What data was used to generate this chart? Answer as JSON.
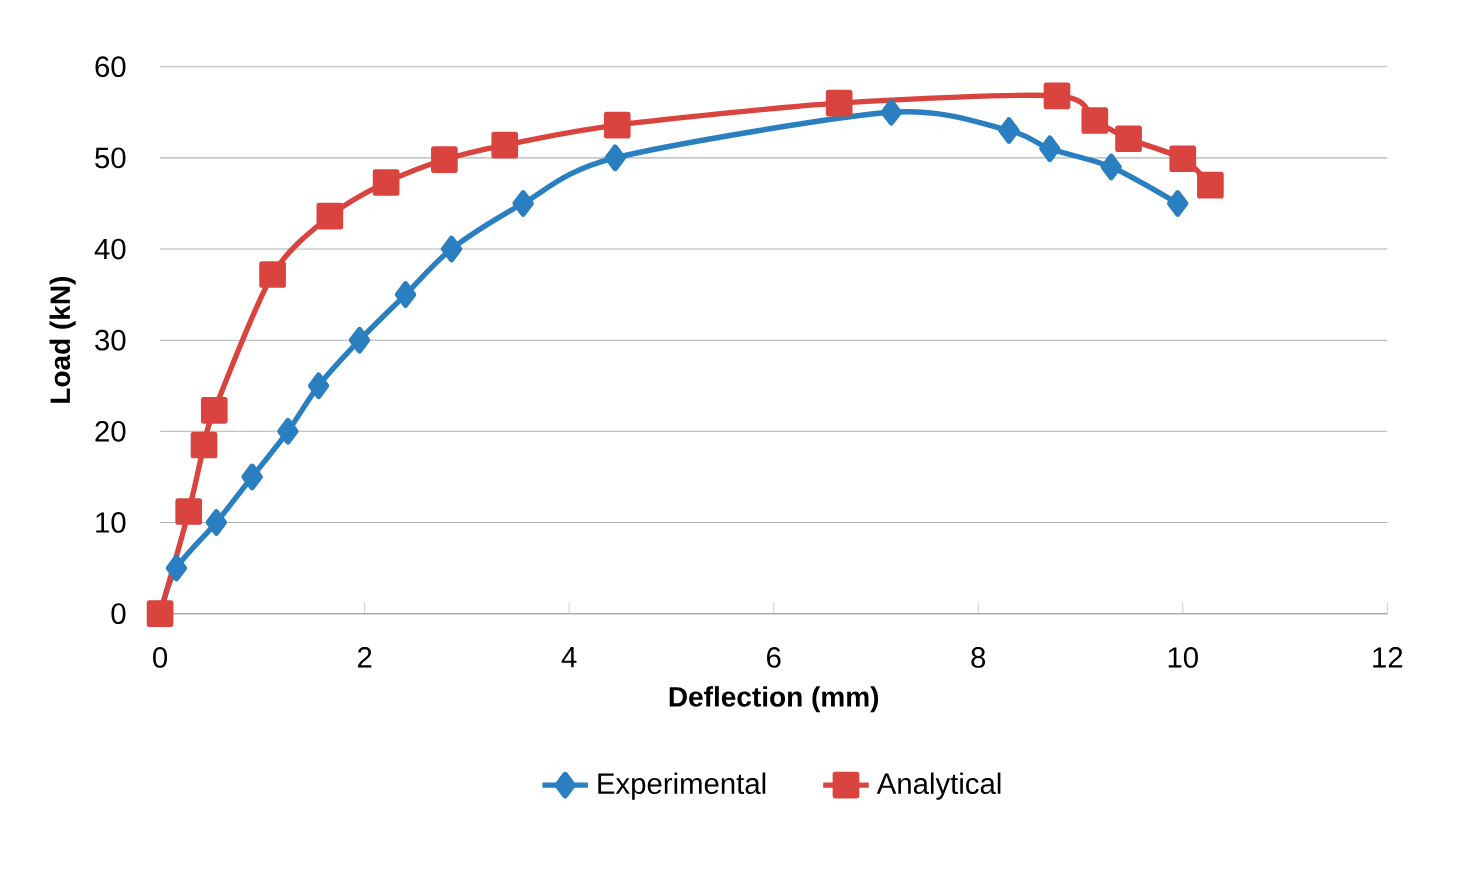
{
  "chart_data": {
    "type": "line",
    "xlabel": "Deflection (mm)",
    "ylabel": "Load (kN)",
    "xlim": [
      0,
      12
    ],
    "ylim": [
      0,
      60
    ],
    "xticks": [
      0,
      2,
      4,
      6,
      8,
      10,
      12
    ],
    "yticks": [
      0,
      10,
      20,
      30,
      40,
      50,
      60
    ],
    "grid": "y",
    "legend": "bottom",
    "series": [
      {
        "name": "Experimental",
        "color": "#2a7fc1",
        "marker": "diamond",
        "x": [
          0,
          0.16,
          0.55,
          0.9,
          1.25,
          1.55,
          1.95,
          2.4,
          2.85,
          3.55,
          4.45,
          7.15,
          8.3,
          8.7,
          9.3,
          9.95
        ],
        "values": [
          0,
          5,
          10,
          15,
          20,
          25,
          30,
          35,
          40,
          45,
          50,
          55,
          53,
          51,
          49,
          45
        ]
      },
      {
        "name": "Analytical",
        "color": "#d9443f",
        "marker": "square",
        "x": [
          0,
          0.28,
          0.43,
          0.53,
          1.1,
          1.66,
          2.21,
          2.78,
          3.37,
          4.47,
          6.64,
          8.77,
          9.14,
          9.47,
          10.0,
          10.27
        ],
        "values": [
          0,
          11.2,
          18.5,
          22.3,
          37.2,
          43.6,
          47.3,
          49.8,
          51.4,
          53.6,
          56.0,
          56.8,
          54.1,
          52.1,
          49.9,
          47.0
        ]
      }
    ]
  }
}
